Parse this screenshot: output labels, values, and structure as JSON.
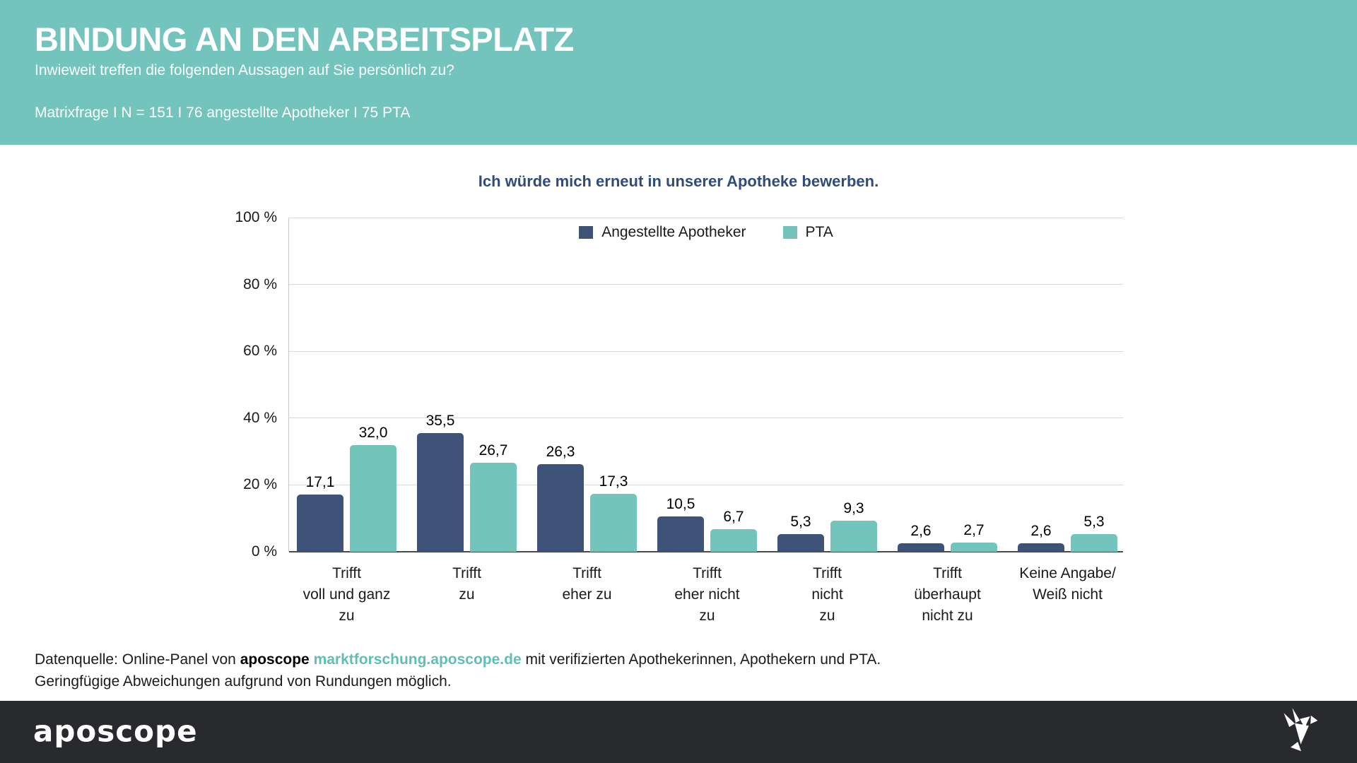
{
  "header": {
    "title": "BINDUNG AN DEN ARBEITSPLATZ",
    "subtitle": "Inwieweit treffen die folgenden Aussagen auf Sie persönlich zu?",
    "meta": "Matrixfrage I N = 151 I 76 angestellte Apotheker I 75 PTA"
  },
  "chart_data": {
    "type": "bar",
    "title": "Ich würde mich erneut in unserer Apotheke bewerben.",
    "categories": [
      "Trifft\nvoll und ganz\nzu",
      "Trifft\nzu",
      "Trifft\neher zu",
      "Trifft\neher nicht\nzu",
      "Trifft\nnicht\nzu",
      "Trifft\nüberhaupt\nnicht zu",
      "Keine Angabe/\nWeiß nicht"
    ],
    "series": [
      {
        "name": "Angestellte Apotheker",
        "color": "#3E5377",
        "values": [
          17.1,
          35.5,
          26.3,
          10.5,
          5.3,
          2.6,
          2.6
        ],
        "labels": [
          "17,1",
          "35,5",
          "26,3",
          "10,5",
          "5,3",
          "2,6",
          "2,6"
        ]
      },
      {
        "name": "PTA",
        "color": "#73C4BB",
        "values": [
          32.0,
          26.7,
          17.3,
          6.7,
          9.3,
          2.7,
          5.3
        ],
        "labels": [
          "32,0",
          "26,7",
          "17,3",
          "6,7",
          "9,3",
          "2,7",
          "5,3"
        ]
      }
    ],
    "ylim": [
      0,
      100
    ],
    "yticks": [
      0,
      20,
      40,
      60,
      80,
      100
    ],
    "ytick_labels": [
      "0 %",
      "20 %",
      "40 %",
      "60 %",
      "80 %",
      "100 %"
    ],
    "grid": true,
    "legend_position": "top-center"
  },
  "source": {
    "line1_prefix": "Datenquelle: Online-Panel von ",
    "line1_brand": "aposcope ",
    "line1_link": "marktforschung.aposcope.de",
    "line1_suffix": " mit verifizierten Apothekerinnen, Apothekern und PTA.",
    "line2": "Geringfügige Abweichungen aufgrund von Rundungen möglich."
  },
  "footer": {
    "logo": "aposcope"
  },
  "colors": {
    "header_background": "#73C4BC",
    "footer_background": "#282A2E",
    "chart_title": "#2F4C7C",
    "link": "#5FBFB4",
    "gridline": "#D9D9D9",
    "axis": "#4A4A4A"
  }
}
